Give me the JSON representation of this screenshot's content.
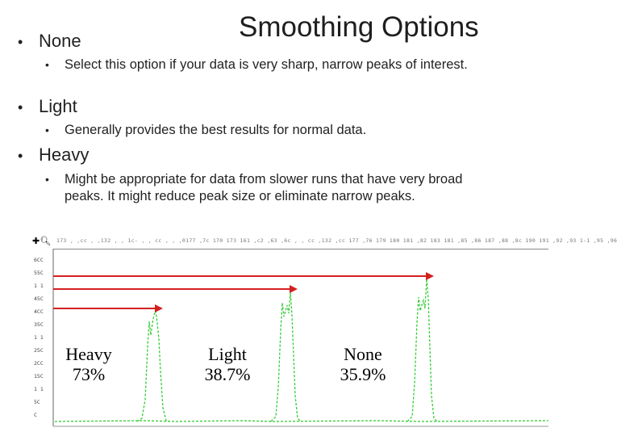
{
  "slide": {
    "title": "Smoothing Options",
    "bullets": [
      {
        "label": "None",
        "sub": "Select this option if your data is very sharp, narrow peaks of interest."
      },
      {
        "label": "Light",
        "sub": "Generally provides the best results for normal data."
      },
      {
        "label": "Heavy",
        "sub": "Might be appropriate for data from slower runs that have very broad peaks.  It might reduce peak size or eliminate narrow peaks."
      }
    ]
  },
  "chart": {
    "ruler_text": "173 ,  ,cc , ,132 , , 1c- , , cc , , ,0177 ,7c 170 173 161 ,c2 ,63 ,6c , , cc ,132 ,cc 177 ,76 179 180 181 ,82 183 181 ,85 ,86 187 ,88 ,8c 190 191 ,92 ,93 1-1 ,95 ,96",
    "y_ticks": [
      "6CC",
      "55C",
      "1 1",
      "45C",
      "4CC",
      "35C",
      "1 1",
      "25C",
      "2CC",
      "15C",
      "1 1",
      "5C",
      "C"
    ],
    "line_color": "#33cc33",
    "arrow_color": "#d42020",
    "peaks": [
      {
        "name": "Heavy",
        "percent": "73%"
      },
      {
        "name": "Light",
        "percent": "38.7%"
      },
      {
        "name": "None",
        "percent": "35.9%"
      }
    ]
  }
}
